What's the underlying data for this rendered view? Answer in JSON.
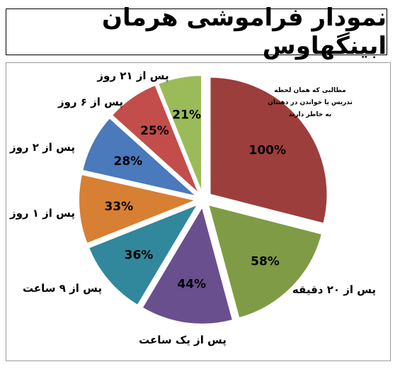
{
  "title": "نمودار فراموشی هرمان ابینگهاوس",
  "chart_data": {
    "type": "pie",
    "title": "نمودار فراموشی هرمان ابینگهاوس",
    "slices": [
      {
        "category": "مطالبی که همان لحظه تدریس یا خواندن در ذهنتان به خاطر دارید",
        "value_label": "100%",
        "value": 100,
        "color": "#9C3E3C"
      },
      {
        "category": "پس از ۲۰ دقیقه",
        "value_label": "58%",
        "value": 58,
        "color": "#7F9B45"
      },
      {
        "category": "پس از یک ساعت",
        "value_label": "44%",
        "value": 44,
        "color": "#6A4F8E"
      },
      {
        "category": "پس از ۹ ساعت",
        "value_label": "36%",
        "value": 36,
        "color": "#31879B"
      },
      {
        "category": "پس از ۱ روز",
        "value_label": "33%",
        "value": 33,
        "color": "#D77F33"
      },
      {
        "category": "پس از ۲ روز",
        "value_label": "28%",
        "value": 28,
        "color": "#4A79BC"
      },
      {
        "category": "پس از ۶ روز",
        "value_label": "25%",
        "value": 25,
        "color": "#C24D4B"
      },
      {
        "category": "پس از ۲۱ روز",
        "value_label": "21%",
        "value": 21,
        "color": "#9BBB59"
      }
    ]
  }
}
